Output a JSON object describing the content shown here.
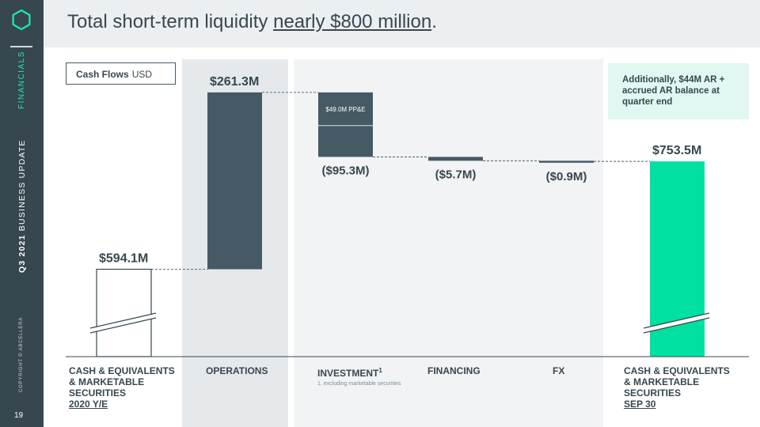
{
  "slide": {
    "title_main": "Total short-term liquidity ",
    "title_emph": "nearly $800 million",
    "title_end": ".",
    "section": "FINANCIALS",
    "update_bold": "Q3 2021",
    "update_rest": " BUSINESS UPDATE",
    "copyright": "COPYRIGHT © ABCELLERA",
    "page_number": "19"
  },
  "legend_box": {
    "title": "Cash Flows",
    "unit": "USD"
  },
  "note": "Additionally, $44M AR + accrued AR balance at quarter end",
  "footnote": "1. excluding marketable securities",
  "colors": {
    "sidebar": "#37474f",
    "bar": "#455a64",
    "accent": "#00e0a0",
    "shade": "#eceff1",
    "note_bg": "#e0f7f2"
  },
  "chart_data": {
    "type": "bar",
    "subtype": "waterfall",
    "unit": "USD millions",
    "categories": [
      {
        "lines": [
          "CASH & EQUIVALENTS",
          "& MARKETABLE",
          "SECURITIES"
        ],
        "sub": "2020 Y/E"
      },
      {
        "lines": [
          "OPERATIONS"
        ]
      },
      {
        "lines": [
          "INVESTMENT"
        ],
        "sup": "1"
      },
      {
        "lines": [
          "FINANCING"
        ]
      },
      {
        "lines": [
          "FX"
        ]
      },
      {
        "lines": [
          "CASH & EQUIVALENTS",
          "& MARKETABLE",
          "SECURITIES"
        ],
        "sub": "SEP 30"
      }
    ],
    "values": [
      594.1,
      261.3,
      -95.3,
      -5.7,
      -0.9,
      753.5
    ],
    "kinds": [
      "total",
      "delta",
      "delta",
      "delta",
      "delta",
      "total"
    ],
    "data_labels": [
      "$594.1M",
      "$261.3M",
      "($95.3M)",
      "($5.7M)",
      "($0.9M)",
      "$753.5M"
    ],
    "inner_annotation": {
      "category_index": 2,
      "text": "$49.0M PP&E",
      "value": -49.0
    },
    "axis_break": true
  }
}
